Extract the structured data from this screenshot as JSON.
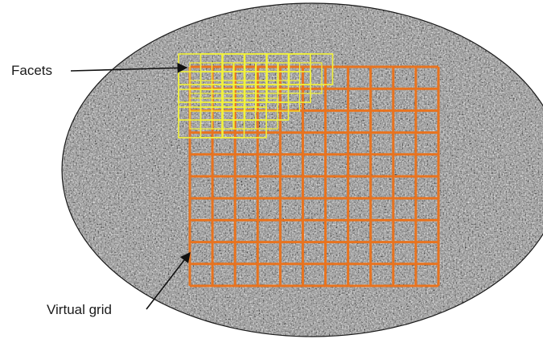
{
  "labels": {
    "facets": "Facets",
    "virtual_grid": "Virtual grid"
  },
  "colors": {
    "background": "#ffffff",
    "specimen_outline": "#1a1a1a",
    "speckle_dark": "#3c3c3c",
    "speckle_mid": "#8a8a8a",
    "speckle_light": "#e6e6e6",
    "virtual_grid": "#e8731f",
    "facets": "#f2f23a",
    "arrows": "#111111"
  },
  "virtual_grid": {
    "rows": 10,
    "cols": 11
  },
  "facets": {
    "rows": 4,
    "cols": 6,
    "overlap": "50%"
  },
  "icons": {
    "specimen": "speckle-pattern-ellipse",
    "arrow": "arrow-icon"
  }
}
